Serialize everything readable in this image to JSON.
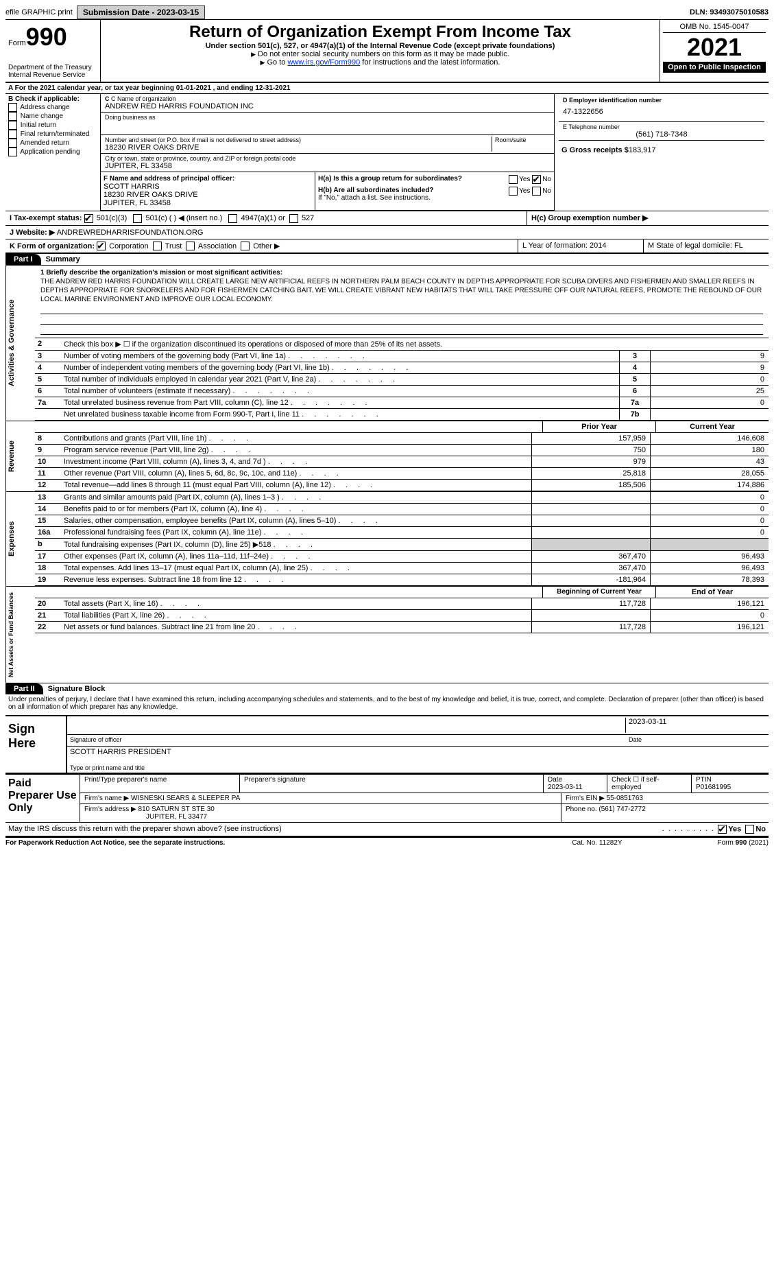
{
  "topbar": {
    "efile": "efile GRAPHIC print",
    "submission": "Submission Date - 2023-03-15",
    "dln": "DLN: 93493075010583"
  },
  "header": {
    "form_prefix": "Form",
    "form_number": "990",
    "dept": "Department of the Treasury",
    "irs": "Internal Revenue Service",
    "title": "Return of Organization Exempt From Income Tax",
    "subtitle": "Under section 501(c), 527, or 4947(a)(1) of the Internal Revenue Code (except private foundations)",
    "warn_ssn": "Do not enter social security numbers on this form as it may be made public.",
    "goto": "Go to",
    "goto_link": "www.irs.gov/Form990",
    "goto_tail": "for instructions and the latest information.",
    "omb": "OMB No. 1545-0047",
    "year": "2021",
    "open": "Open to Public Inspection"
  },
  "section_a": "A For the 2021 calendar year, or tax year beginning 01-01-2021    , and ending 12-31-2021",
  "section_b": {
    "label": "B Check if applicable:",
    "opts": [
      "Address change",
      "Name change",
      "Initial return",
      "Final return/terminated",
      "Amended return",
      "Application pending"
    ]
  },
  "section_c": {
    "name_label": "C Name of organization",
    "name": "ANDREW RED HARRIS FOUNDATION INC",
    "dba_label": "Doing business as",
    "street_label": "Number and street (or P.O. box if mail is not delivered to street address)",
    "street": "18230 RIVER OAKS DRIVE",
    "room_label": "Room/suite",
    "city_label": "City or town, state or province, country, and ZIP or foreign postal code",
    "city": "JUPITER, FL  33458",
    "f_label": "F  Name and address of principal officer:",
    "f_name": "SCOTT HARRIS",
    "f_addr1": "18230 RIVER OAKS DRIVE",
    "f_addr2": "JUPITER, FL  33458"
  },
  "section_d": {
    "ein_label": "D Employer identification number",
    "ein": "47-1322656",
    "tel_label": "E Telephone number",
    "tel": "(561) 718-7348",
    "gross_label": "G Gross receipts $",
    "gross": "183,917"
  },
  "section_h": {
    "a": "H(a)  Is this a group return for subordinates?",
    "b": "H(b)  Are all subordinates included?",
    "b_note": "If \"No,\" attach a list. See instructions.",
    "c": "H(c)  Group exemption number ▶",
    "yes": "Yes",
    "no": "No"
  },
  "section_i": {
    "label": "I   Tax-exempt status:",
    "o1": "501(c)(3)",
    "o2": "501(c) (  ) ◀ (insert no.)",
    "o3": "4947(a)(1) or",
    "o4": "527"
  },
  "section_j": {
    "label": "J   Website: ▶",
    "val": "ANDREWREDHARRISFOUNDATION.ORG"
  },
  "section_k": {
    "label": "K Form of organization:",
    "opts": [
      "Corporation",
      "Trust",
      "Association",
      "Other ▶"
    ],
    "l": "L Year of formation: 2014",
    "m": "M State of legal domicile: FL"
  },
  "part1": {
    "header": "Part I",
    "title": "Summary",
    "mission_label": "1  Briefly describe the organization's mission or most significant activities:",
    "mission": "THE ANDREW RED HARRIS FOUNDATION WILL CREATE LARGE NEW ARTIFICIAL REEFS IN NORTHERN PALM BEACH COUNTY IN DEPTHS APPROPRIATE FOR SCUBA DIVERS AND FISHERMEN AND SMALLER REEFS IN DEPTHS APPROPRIATE FOR SNORKELERS AND FOR FISHERMEN CATCHING BAIT. WE WILL CREATE VIBRANT NEW HABITATS THAT WILL TAKE PRESSURE OFF OUR NATURAL REEFS, PROMOTE THE REBOUND OF OUR LOCAL MARINE ENVIRONMENT AND IMPROVE OUR LOCAL ECONOMY.",
    "line2": "Check this box ▶ ☐  if the organization discontinued its operations or disposed of more than 25% of its net assets.",
    "lines_gov": [
      {
        "n": "3",
        "t": "Number of voting members of the governing body (Part VI, line 1a)",
        "b": "3",
        "v": "9"
      },
      {
        "n": "4",
        "t": "Number of independent voting members of the governing body (Part VI, line 1b)",
        "b": "4",
        "v": "9"
      },
      {
        "n": "5",
        "t": "Total number of individuals employed in calendar year 2021 (Part V, line 2a)",
        "b": "5",
        "v": "0"
      },
      {
        "n": "6",
        "t": "Total number of volunteers (estimate if necessary)",
        "b": "6",
        "v": "25"
      },
      {
        "n": "7a",
        "t": "Total unrelated business revenue from Part VIII, column (C), line 12",
        "b": "7a",
        "v": "0"
      },
      {
        "n": "",
        "t": "Net unrelated business taxable income from Form 990-T, Part I, line 11",
        "b": "7b",
        "v": ""
      }
    ],
    "prior": "Prior Year",
    "current": "Current Year",
    "rev": [
      {
        "n": "8",
        "t": "Contributions and grants (Part VIII, line 1h)",
        "p": "157,959",
        "c": "146,608"
      },
      {
        "n": "9",
        "t": "Program service revenue (Part VIII, line 2g)",
        "p": "750",
        "c": "180"
      },
      {
        "n": "10",
        "t": "Investment income (Part VIII, column (A), lines 3, 4, and 7d )",
        "p": "979",
        "c": "43"
      },
      {
        "n": "11",
        "t": "Other revenue (Part VIII, column (A), lines 5, 6d, 8c, 9c, 10c, and 11e)",
        "p": "25,818",
        "c": "28,055"
      },
      {
        "n": "12",
        "t": "Total revenue—add lines 8 through 11 (must equal Part VIII, column (A), line 12)",
        "p": "185,506",
        "c": "174,886"
      }
    ],
    "exp": [
      {
        "n": "13",
        "t": "Grants and similar amounts paid (Part IX, column (A), lines 1–3 )",
        "p": "",
        "c": "0"
      },
      {
        "n": "14",
        "t": "Benefits paid to or for members (Part IX, column (A), line 4)",
        "p": "",
        "c": "0"
      },
      {
        "n": "15",
        "t": "Salaries, other compensation, employee benefits (Part IX, column (A), lines 5–10)",
        "p": "",
        "c": "0"
      },
      {
        "n": "16a",
        "t": "Professional fundraising fees (Part IX, column (A), line 11e)",
        "p": "",
        "c": "0"
      },
      {
        "n": "b",
        "t": "Total fundraising expenses (Part IX, column (D), line 25) ▶518",
        "p": "",
        "c": "",
        "shade": true
      },
      {
        "n": "17",
        "t": "Other expenses (Part IX, column (A), lines 11a–11d, 11f–24e)",
        "p": "367,470",
        "c": "96,493"
      },
      {
        "n": "18",
        "t": "Total expenses. Add lines 13–17 (must equal Part IX, column (A), line 25)",
        "p": "367,470",
        "c": "96,493"
      },
      {
        "n": "19",
        "t": "Revenue less expenses. Subtract line 18 from line 12",
        "p": "-181,964",
        "c": "78,393"
      }
    ],
    "beg": "Beginning of Current Year",
    "end": "End of Year",
    "net": [
      {
        "n": "20",
        "t": "Total assets (Part X, line 16)",
        "p": "117,728",
        "c": "196,121"
      },
      {
        "n": "21",
        "t": "Total liabilities (Part X, line 26)",
        "p": "",
        "c": "0"
      },
      {
        "n": "22",
        "t": "Net assets or fund balances. Subtract line 21 from line 20",
        "p": "117,728",
        "c": "196,121"
      }
    ],
    "side_gov": "Activities & Governance",
    "side_rev": "Revenue",
    "side_exp": "Expenses",
    "side_net": "Net Assets or Fund Balances"
  },
  "part2": {
    "header": "Part II",
    "title": "Signature Block",
    "declaration": "Under penalties of perjury, I declare that I have examined this return, including accompanying schedules and statements, and to the best of my knowledge and belief, it is true, correct, and complete. Declaration of preparer (other than officer) is based on all information of which preparer has any knowledge.",
    "sign_here": "Sign Here",
    "sig_officer": "Signature of officer",
    "sig_date": "2023-03-11",
    "date_label": "Date",
    "name_title": "SCOTT HARRIS  PRESIDENT",
    "name_title_label": "Type or print name and title",
    "paid": "Paid Preparer Use Only",
    "p_name_label": "Print/Type preparer's name",
    "p_sig_label": "Preparer's signature",
    "p_date": "2023-03-11",
    "p_check": "Check ☐ if self-employed",
    "ptin_label": "PTIN",
    "ptin": "P01681995",
    "firm_name_label": "Firm's name    ▶",
    "firm_name": "WISNESKI SEARS & SLEEPER PA",
    "firm_ein_label": "Firm's EIN ▶",
    "firm_ein": "55-0851763",
    "firm_addr_label": "Firm's address ▶",
    "firm_addr1": "810 SATURN ST STE 30",
    "firm_addr2": "JUPITER, FL  33477",
    "firm_phone_label": "Phone no.",
    "firm_phone": "(561) 747-2772",
    "discuss": "May the IRS discuss this return with the preparer shown above? (see instructions)",
    "yes": "Yes",
    "no": "No"
  },
  "footer": {
    "left": "For Paperwork Reduction Act Notice, see the separate instructions.",
    "center": "Cat. No. 11282Y",
    "right": "Form 990 (2021)"
  }
}
